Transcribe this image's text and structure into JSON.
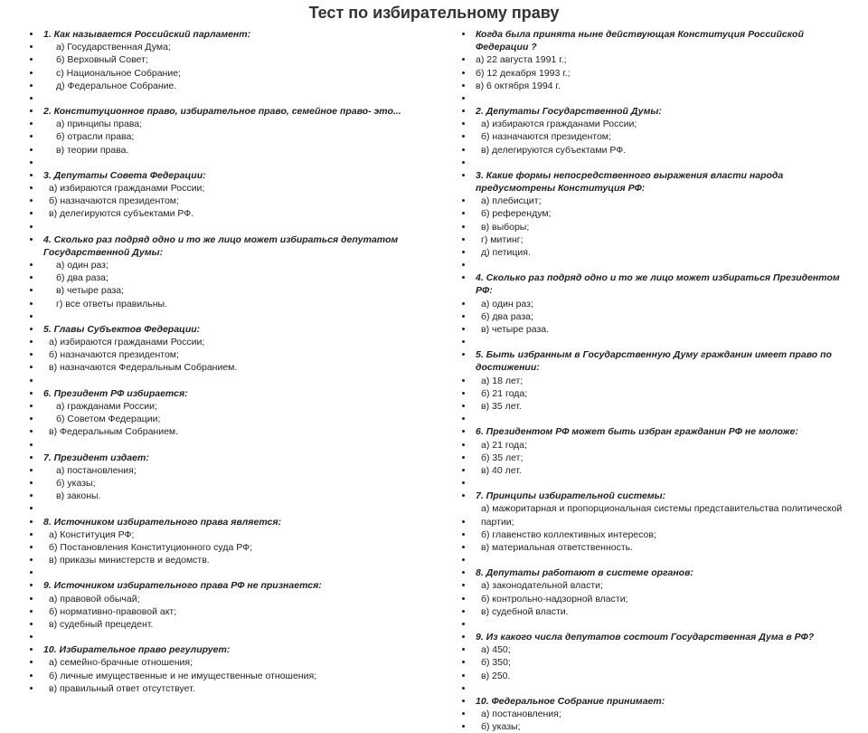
{
  "title": "Тест по избирательному праву",
  "left": [
    {
      "t": "q",
      "v": "1. Как называется Российский парламент:"
    },
    {
      "t": "o",
      "v": "а) Государственная Дума;"
    },
    {
      "t": "o",
      "v": "б) Верховный Совет;"
    },
    {
      "t": "o",
      "v": "с) Национальное Собрание;"
    },
    {
      "t": "o",
      "v": "д) Федеральное Собрание."
    },
    {
      "t": "b"
    },
    {
      "t": "q",
      "v": "2. Конституционное право, избирательное право, семейное право- это..."
    },
    {
      "t": "o",
      "v": "а) принципы права;"
    },
    {
      "t": "o",
      "v": "б) отрасли права;"
    },
    {
      "t": "o",
      "v": "в) теории права."
    },
    {
      "t": "b"
    },
    {
      "t": "q",
      "v": " 3. Депутаты Совета Федерации:"
    },
    {
      "t": "o2",
      "v": "а) избираются гражданами России;"
    },
    {
      "t": "o2",
      "v": "б) назначаются президентом;"
    },
    {
      "t": "o2",
      "v": "в) делегируются субъектами РФ."
    },
    {
      "t": "b"
    },
    {
      "t": "q",
      "v": " 4. Сколько раз подряд одно и то же лицо может избираться депутатом Государственной Думы:"
    },
    {
      "t": "o",
      "v": "а) один раз;"
    },
    {
      "t": "o",
      "v": "б) два раза;"
    },
    {
      "t": "o",
      "v": "в) четыре раза;"
    },
    {
      "t": "o",
      "v": "г) все ответы правильны."
    },
    {
      "t": "b"
    },
    {
      "t": "q",
      "v": " 5. Главы Субъектов Федерации:"
    },
    {
      "t": "o2",
      "v": "а) избираются гражданами России;"
    },
    {
      "t": "o2",
      "v": "б) назначаются президентом;"
    },
    {
      "t": "o2",
      "v": "в) назначаются Федеральным Собранием."
    },
    {
      "t": "b"
    },
    {
      "t": "q",
      "v": "6. Президент РФ избирается:"
    },
    {
      "t": "o",
      "v": "а) гражданами России;"
    },
    {
      "t": "o",
      "v": "б) Советом Федерации;"
    },
    {
      "t": "o2",
      "v": "в) Федеральным Собранием."
    },
    {
      "t": "b"
    },
    {
      "t": "q",
      "v": "7. Президент издает:"
    },
    {
      "t": "o",
      "v": "а) постановления;"
    },
    {
      "t": "o",
      "v": "б) указы;"
    },
    {
      "t": "o",
      "v": "в) законы."
    },
    {
      "t": "b"
    },
    {
      "t": "q",
      "v": " 8. Источником избирательного права является:"
    },
    {
      "t": "o2",
      "v": "а) Конституция РФ;"
    },
    {
      "t": "o2",
      "v": "б) Постановления Конституционного суда РФ;"
    },
    {
      "t": "o2",
      "v": "в)  приказы министерств и ведомств."
    },
    {
      "t": "b"
    },
    {
      "t": "q",
      "v": " 9. Источником избирательного права РФ не признается:"
    },
    {
      "t": "o2",
      "v": "а) правовой обычай;"
    },
    {
      "t": "o2",
      "v": "б) нормативно-правовой акт;"
    },
    {
      "t": "o2",
      "v": "в) судебный прецедент."
    },
    {
      "t": "b"
    },
    {
      "t": "q",
      "v": " 10. Избирательное право регулирует:"
    },
    {
      "t": "o2",
      "v": "а) семейно-брачные отношения;"
    },
    {
      "t": "o2",
      "v": "б) личные имущественные и не имущественные отношения;"
    },
    {
      "t": "o2",
      "v": "в)  правильный ответ отсутствует."
    }
  ],
  "right": [
    {
      "t": "q",
      "v": "Когда была принята ныне действующая Конституция Российской Федерации ?"
    },
    {
      "t": "p",
      "v": "а) 22  августа  1991 г.;"
    },
    {
      "t": "p",
      "v": "б) 12 декабря  1993 г.;"
    },
    {
      "t": "p",
      "v": " в)  6  октября  1994 г."
    },
    {
      "t": "b"
    },
    {
      "t": "q",
      "v": "2. Депутаты Государственной Думы:"
    },
    {
      "t": "o2",
      "v": "а) избираются гражданами России;"
    },
    {
      "t": "o2",
      "v": "б) назначаются президентом;"
    },
    {
      "t": "o2",
      "v": "в) делегируются субъектами РФ."
    },
    {
      "t": "b"
    },
    {
      "t": "q",
      "v": "3. Какие формы непосредственного выражения власти народа предусмотрены Конституция РФ:"
    },
    {
      "t": "o2",
      "v": "а) плебисцит;"
    },
    {
      "t": "o2",
      "v": "б) референдум;"
    },
    {
      "t": "o2",
      "v": "в) выборы;"
    },
    {
      "t": "o2",
      "v": "г) митинг;"
    },
    {
      "t": "o2",
      "v": "д) петиция."
    },
    {
      "t": "b"
    },
    {
      "t": "q",
      "v": "4. Сколько раз подряд одно и то же лицо может избираться Президентом РФ:"
    },
    {
      "t": "o2",
      "v": "а) один раз;"
    },
    {
      "t": "o2",
      "v": "б) два раза;"
    },
    {
      "t": "o2",
      "v": "в) четыре раза."
    },
    {
      "t": "b"
    },
    {
      "t": "q",
      "v": "5. Быть избранным в  Государственную Думу гражданин имеет право по достижении:"
    },
    {
      "t": "o2",
      "v": "а) 18 лет;"
    },
    {
      "t": "o2",
      "v": "б) 21 года;"
    },
    {
      "t": "o2",
      "v": "в) 35 лет."
    },
    {
      "t": "b"
    },
    {
      "t": "q",
      "v": "6. Президентом РФ может быть избран гражданин РФ не моложе:"
    },
    {
      "t": "o2",
      "v": "а) 21 года;"
    },
    {
      "t": "o2",
      "v": "б) 35 лет;"
    },
    {
      "t": "o2",
      "v": "в) 40 лет."
    },
    {
      "t": "b"
    },
    {
      "t": "q",
      "v": "7. Принципы избирательной системы:"
    },
    {
      "t": "o2",
      "v": "а) мажоритарная и пропорциональная системы представительства политической партии;"
    },
    {
      "t": "o2",
      "v": "б) главенство коллективных интересов;"
    },
    {
      "t": "o2",
      "v": "в) материальная ответственность."
    },
    {
      "t": "b"
    },
    {
      "t": "q",
      "v": "8. Депутаты работают в системе органов:"
    },
    {
      "t": "o2",
      "v": "а) законодательной власти;"
    },
    {
      "t": "o2",
      "v": "б) контрольно-надзорной власти;"
    },
    {
      "t": "o2",
      "v": "в) судебной власти."
    },
    {
      "t": "b"
    },
    {
      "t": "q",
      "v": "9. Из какого числа депутатов состоит Государственная Дума в РФ?"
    },
    {
      "t": "o2",
      "v": " а) 450;"
    },
    {
      "t": "o2",
      "v": " б) 350;"
    },
    {
      "t": "o2",
      "v": " в) 250."
    },
    {
      "t": "b"
    },
    {
      "t": "q",
      "v": "10. Федеральное Собрание принимает:"
    },
    {
      "t": "o2",
      "v": "а) постановления;"
    },
    {
      "t": "o2",
      "v": "б) указы;"
    }
  ]
}
